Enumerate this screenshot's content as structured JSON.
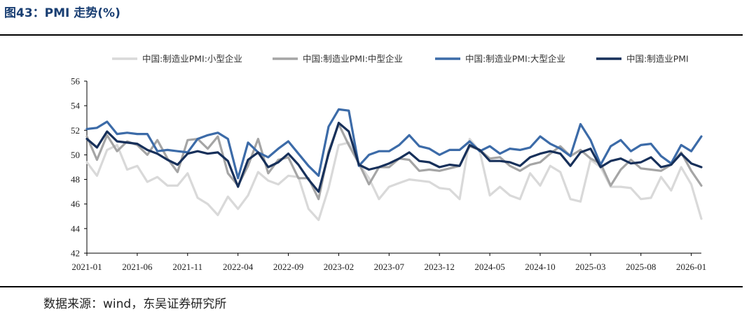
{
  "title": "图43：PMI 走势(%)",
  "source": "数据来源：wind，东吴证券研究所",
  "chart_data": {
    "type": "line",
    "x_tick_labels": [
      "2021-01",
      "2021-06",
      "2021-11",
      "2022-04",
      "2022-09",
      "2023-02",
      "2023-07",
      "2023-12",
      "2024-05",
      "2024-10",
      "2025-03",
      "2025-08",
      "2026-01"
    ],
    "ylim": [
      42,
      56
    ],
    "y_ticks": [
      42,
      44,
      46,
      48,
      50,
      52,
      54,
      56
    ],
    "legend_position": "top",
    "series": [
      {
        "name": "中国:制造业PMI:小型企业",
        "color": "#d9d9d9",
        "values": [
          49.4,
          48.3,
          50.4,
          50.8,
          48.8,
          49.1,
          47.8,
          48.2,
          47.5,
          47.5,
          48.5,
          46.5,
          46.0,
          45.1,
          46.6,
          45.6,
          46.7,
          48.6,
          47.9,
          47.6,
          48.3,
          48.2,
          45.6,
          44.7,
          47.3,
          50.8,
          51.0,
          49.3,
          48.1,
          46.4,
          47.4,
          47.7,
          48.0,
          47.9,
          47.8,
          47.3,
          47.2,
          46.4,
          51.3,
          50.3,
          46.7,
          47.4,
          46.7,
          46.4,
          48.5,
          47.5,
          49.1,
          48.6,
          46.4,
          46.2,
          49.6,
          49.0,
          47.4,
          47.4,
          47.3,
          46.4,
          46.5,
          48.2,
          47.1,
          49.0,
          47.6,
          44.8
        ]
      },
      {
        "name": "中国:制造业PMI:中型企业",
        "color": "#a5a5a5",
        "values": [
          51.5,
          49.6,
          51.6,
          50.3,
          51.1,
          50.8,
          50.0,
          51.2,
          49.7,
          48.6,
          51.2,
          51.3,
          50.5,
          51.5,
          48.5,
          47.5,
          49.1,
          51.3,
          48.5,
          49.6,
          49.8,
          48.1,
          48.1,
          46.4,
          50.3,
          52.5,
          50.8,
          49.3,
          47.6,
          49.0,
          49.0,
          49.7,
          49.6,
          48.7,
          48.8,
          48.7,
          48.9,
          49.1,
          50.7,
          50.4,
          49.7,
          49.8,
          49.1,
          48.7,
          49.2,
          49.4,
          50.1,
          50.7,
          49.9,
          50.4,
          49.7,
          49.3,
          47.5,
          48.8,
          49.6,
          48.9,
          48.8,
          48.7,
          49.2,
          50.2,
          48.7,
          47.5
        ]
      },
      {
        "name": "中国:制造业PMI:大型企业",
        "color": "#3c6ba8",
        "values": [
          52.1,
          52.2,
          52.7,
          51.7,
          51.8,
          51.7,
          51.7,
          50.3,
          50.4,
          50.3,
          50.2,
          51.3,
          51.6,
          51.8,
          51.3,
          48.1,
          51.0,
          50.2,
          49.8,
          50.5,
          51.1,
          50.1,
          49.1,
          48.3,
          52.3,
          53.7,
          53.6,
          49.1,
          50.0,
          50.3,
          50.3,
          50.8,
          51.6,
          50.7,
          50.5,
          50.0,
          50.4,
          50.4,
          51.1,
          50.3,
          50.7,
          50.1,
          50.5,
          50.4,
          50.6,
          51.5,
          50.9,
          50.5,
          49.9,
          52.5,
          51.2,
          49.2,
          50.7,
          51.2,
          50.3,
          50.8,
          50.9,
          49.9,
          49.3,
          50.8,
          50.3,
          51.5
        ]
      },
      {
        "name": "中国:制造业PMI",
        "color": "#17305a",
        "values": [
          51.3,
          50.6,
          51.9,
          51.1,
          51.0,
          50.9,
          50.4,
          50.1,
          49.6,
          49.2,
          50.1,
          50.3,
          50.1,
          50.2,
          49.5,
          47.4,
          49.6,
          50.2,
          49.0,
          49.4,
          50.1,
          49.2,
          48.0,
          47.0,
          50.1,
          52.6,
          51.9,
          49.2,
          48.8,
          49.0,
          49.3,
          49.7,
          50.2,
          49.5,
          49.4,
          49.0,
          49.2,
          49.1,
          50.8,
          50.4,
          49.5,
          49.5,
          49.4,
          49.1,
          49.8,
          50.1,
          50.3,
          50.1,
          49.1,
          50.2,
          50.5,
          49.0,
          49.5,
          49.7,
          49.3,
          49.4,
          49.8,
          49.0,
          49.2,
          50.1,
          49.3,
          49.0
        ]
      }
    ]
  }
}
